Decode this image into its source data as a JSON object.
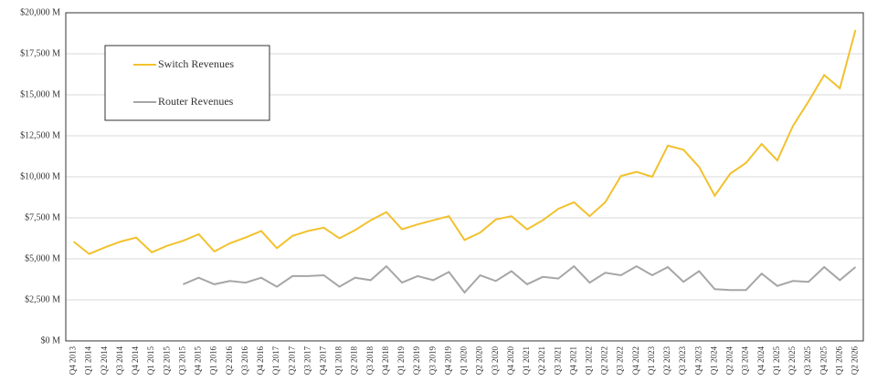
{
  "chart_data": {
    "type": "line",
    "categories": [
      "Q4 2013",
      "Q1 2014",
      "Q2 2014",
      "Q3 2014",
      "Q4 2014",
      "Q1 2015",
      "Q2 2015",
      "Q3 2015",
      "Q4 2015",
      "Q1 2016",
      "Q2 2016",
      "Q3 2016",
      "Q4 2016",
      "Q1 2017",
      "Q2 2017",
      "Q3 2017",
      "Q4 2017",
      "Q1 2018",
      "Q2 2018",
      "Q3 2018",
      "Q4 2018",
      "Q1 2019",
      "Q2 2019",
      "Q3 2019",
      "Q4 2019",
      "Q1 2020",
      "Q2 2020",
      "Q3 2020",
      "Q4 2020",
      "Q1 2021",
      "Q2 2021",
      "Q3 2021",
      "Q4 2021",
      "Q1 2022",
      "Q2 2022",
      "Q3 2022",
      "Q4 2022",
      "Q1 2023",
      "Q2 2023",
      "Q3 2023",
      "Q4 2023",
      "Q1 2024",
      "Q2 2024",
      "Q3 2024",
      "Q4 2024",
      "Q1 2025",
      "Q2 2025",
      "Q3 2025",
      "Q4 2025",
      "Q1 2026",
      "Q2 2026"
    ],
    "series": [
      {
        "name": "Switch Revenues",
        "color": "#f2c12e",
        "values": [
          6050,
          5300,
          5700,
          6050,
          6300,
          5400,
          5800,
          6100,
          6500,
          5450,
          5950,
          6300,
          6700,
          5650,
          6400,
          6700,
          6900,
          6250,
          6750,
          7350,
          7850,
          6800,
          7100,
          7350,
          7600,
          6150,
          6600,
          7400,
          7600,
          6800,
          7350,
          8050,
          8450,
          7600,
          8450,
          10050,
          10300,
          10000,
          11900,
          11650,
          10600,
          8850,
          10200,
          10850,
          12000,
          11000,
          13100,
          14600,
          16200,
          15400,
          18950
        ]
      },
      {
        "name": "Router Revenues",
        "color": "#a6a6a6",
        "values": [
          null,
          null,
          null,
          null,
          null,
          null,
          null,
          3450,
          3850,
          3450,
          3650,
          3550,
          3850,
          3300,
          3950,
          3950,
          4000,
          3300,
          3850,
          3700,
          4550,
          3550,
          3950,
          3700,
          4200,
          2950,
          4000,
          3650,
          4250,
          3450,
          3900,
          3800,
          4550,
          3550,
          4150,
          4000,
          4550,
          4000,
          4500,
          3600,
          4250,
          3150,
          3100,
          3100,
          4100,
          3350,
          3650,
          3600,
          4500,
          3700,
          4500
        ]
      }
    ],
    "ylim": [
      0,
      20000
    ],
    "yticks": [
      {
        "value": 0,
        "label": "$0 M"
      },
      {
        "value": 2500,
        "label": "$2,500 M"
      },
      {
        "value": 5000,
        "label": "$5,000 M"
      },
      {
        "value": 7500,
        "label": "$7,500 M"
      },
      {
        "value": 10000,
        "label": "$10,000 M"
      },
      {
        "value": 12500,
        "label": "$12,500 M"
      },
      {
        "value": 15000,
        "label": "$15,000 M"
      },
      {
        "value": 17500,
        "label": "$17,500 M"
      },
      {
        "value": 20000,
        "label": "$20,000 M"
      }
    ],
    "grid": true
  }
}
